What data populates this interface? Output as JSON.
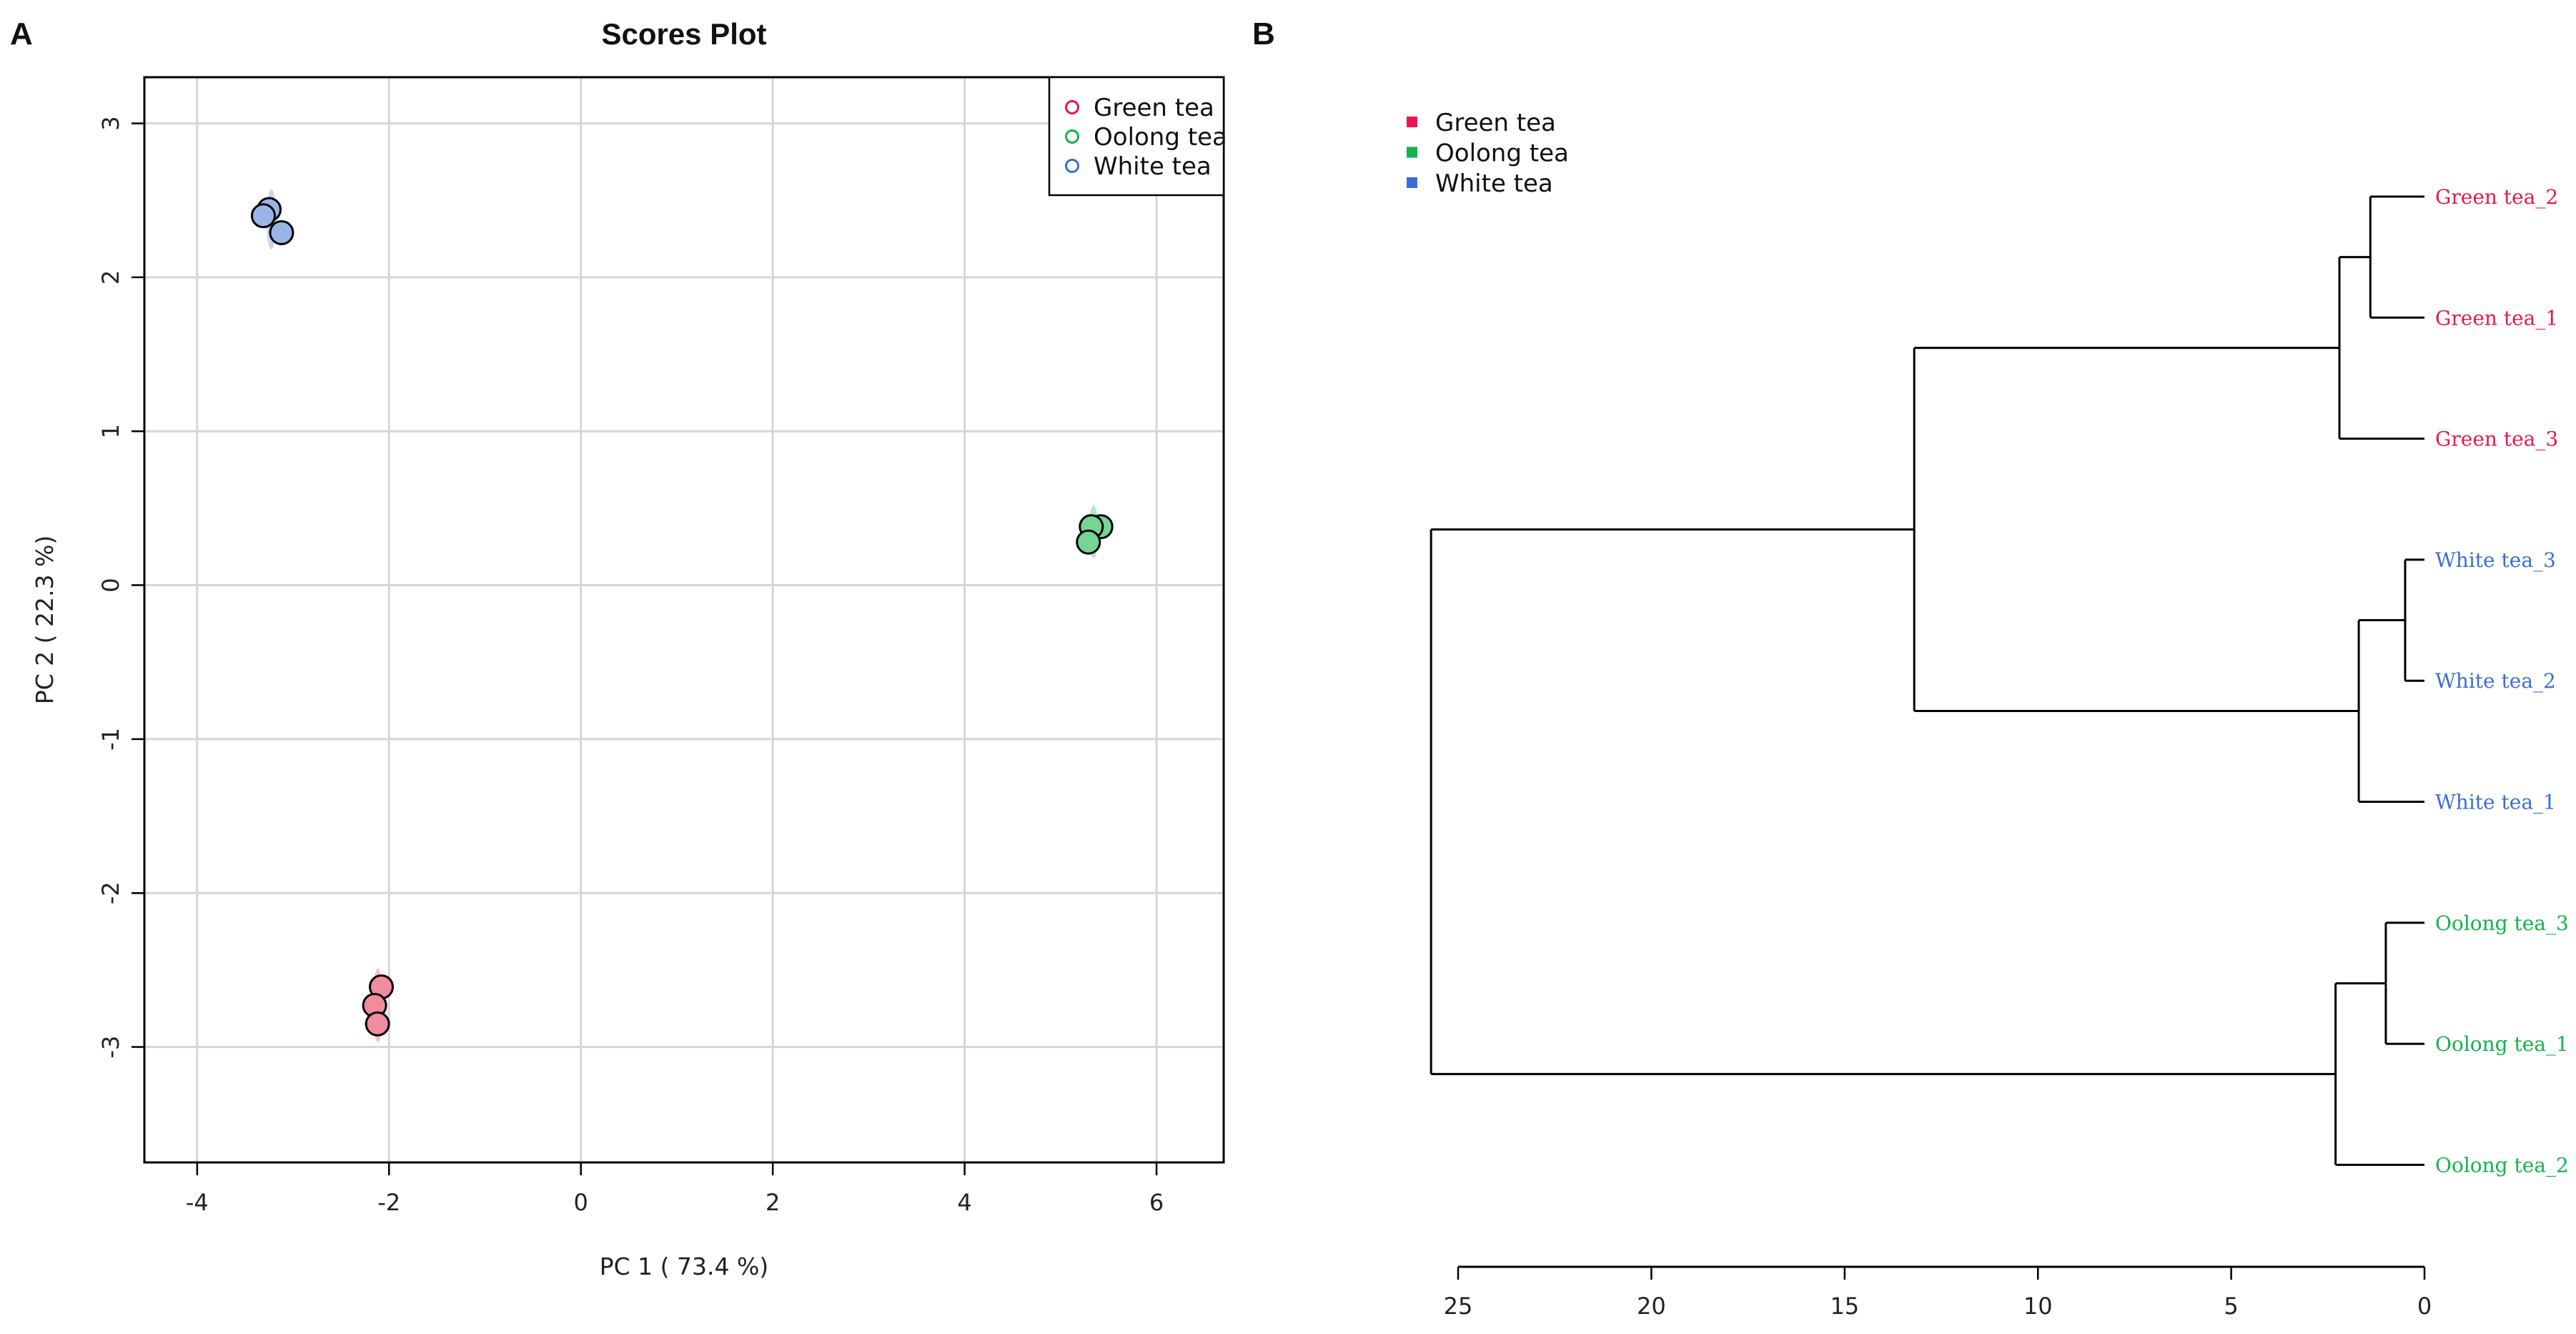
{
  "panel_a_letter": "A",
  "panel_b_letter": "B",
  "chart_data": [
    {
      "type": "scatter",
      "title": "Scores Plot",
      "xlabel": "PC 1 ( 73.4 %)",
      "ylabel": "PC 2 ( 22.3 %)",
      "xlim": [
        -4.55,
        6.7
      ],
      "ylim": [
        -3.75,
        3.3
      ],
      "xticks": [
        -4,
        -2,
        0,
        2,
        4,
        6
      ],
      "yticks": [
        -3,
        -2,
        -1,
        0,
        1,
        2,
        3
      ],
      "grid": true,
      "legend_position": "top-right",
      "series": [
        {
          "name": "Green tea",
          "color": "#e8174f",
          "fill": "#f28b9e",
          "points": [
            [
              -2.08,
              -2.61
            ],
            [
              -2.15,
              -2.73
            ],
            [
              -2.12,
              -2.85
            ]
          ]
        },
        {
          "name": "Oolong tea",
          "color": "#13b34a",
          "fill": "#74d595",
          "points": [
            [
              5.42,
              0.38
            ],
            [
              5.32,
              0.38
            ],
            [
              5.29,
              0.28
            ]
          ]
        },
        {
          "name": "White tea",
          "color": "#3a6ed6",
          "fill": "#9bb4e8",
          "points": [
            [
              -3.25,
              2.44
            ],
            [
              -3.31,
              2.4
            ],
            [
              -3.12,
              2.29
            ]
          ]
        }
      ]
    },
    {
      "type": "dendrogram",
      "xlim": [
        25.5,
        0
      ],
      "xticks": [
        25,
        20,
        15,
        10,
        5,
        0
      ],
      "legend": [
        {
          "name": "Green tea",
          "color": "#e8174f"
        },
        {
          "name": "Oolong tea",
          "color": "#13b34a"
        },
        {
          "name": "White tea",
          "color": "#3a6ed6"
        }
      ],
      "leaves": [
        {
          "label": "Green tea_2",
          "group": "Green tea"
        },
        {
          "label": "Green tea_1",
          "group": "Green tea"
        },
        {
          "label": "Green tea_3",
          "group": "Green tea"
        },
        {
          "label": "White tea_3",
          "group": "White tea"
        },
        {
          "label": "White tea_2",
          "group": "White tea"
        },
        {
          "label": "White tea_1",
          "group": "White tea"
        },
        {
          "label": "Oolong tea_3",
          "group": "Oolong tea"
        },
        {
          "label": "Oolong tea_1",
          "group": "Oolong tea"
        },
        {
          "label": "Oolong tea_2",
          "group": "Oolong tea"
        }
      ],
      "merges": [
        {
          "height": 1.4,
          "a": 0,
          "b": 1
        },
        {
          "height": 0.5,
          "a": 3,
          "b": 4
        },
        {
          "height": 1.0,
          "a": 6,
          "b": 7
        },
        {
          "height": 2.2,
          "a": "m0",
          "b": 2
        },
        {
          "height": 1.7,
          "a": "m1",
          "b": 5
        },
        {
          "height": 2.3,
          "a": "m2",
          "b": 8
        },
        {
          "height": 13.2,
          "a": "m3",
          "b": "m4"
        },
        {
          "height": 25.7,
          "a": "m6",
          "b": "m5"
        }
      ]
    }
  ]
}
